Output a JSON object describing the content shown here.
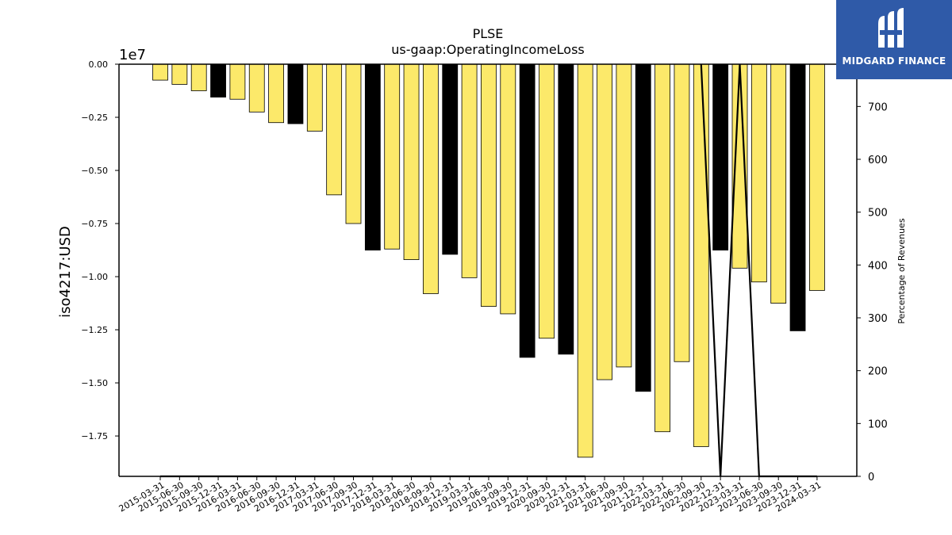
{
  "chart_data": {
    "type": "bar",
    "title": "PLSE",
    "subtitle": "us-gaap:OperatingIncomeLoss",
    "ylabel": "iso4217:USD",
    "y2label": "Percentage of Revenues",
    "y_multiplier": "1e7",
    "ylim": [
      -19400000,
      0
    ],
    "y2lim": [
      0,
      780
    ],
    "y_ticks": [
      0,
      -2500000,
      -5000000,
      -7500000,
      -10000000,
      -12500000,
      -15000000,
      -17500000
    ],
    "y_tick_labels": [
      "0.00",
      "−0.25",
      "−0.50",
      "−0.75",
      "−1.00",
      "−1.25",
      "−1.50",
      "−1.75"
    ],
    "y2_ticks": [
      0,
      100,
      200,
      300,
      400,
      500,
      600,
      700
    ],
    "categories": [
      "2015-03-31",
      "2015-06-30",
      "2015-09-30",
      "2015-12-31",
      "2016-03-31",
      "2016-06-30",
      "2016-09-30",
      "2016-12-31",
      "2017-03-31",
      "2017-06-30",
      "2017-09-30",
      "2017-12-31",
      "2018-03-31",
      "2018-06-30",
      "2018-09-30",
      "2018-12-31",
      "2019-03-31",
      "2019-06-30",
      "2019-09-30",
      "2019-12-31",
      "2020-09-30",
      "2020-12-31",
      "2021-03-31",
      "2021-06-30",
      "2021-09-30",
      "2021-12-31",
      "2022-03-31",
      "2022-06-30",
      "2022-09-30",
      "2022-12-31",
      "2023-03-31",
      "2023-06-30",
      "2023-09-30",
      "2023-12-31",
      "2024-03-31"
    ],
    "values": [
      -750000,
      -950000,
      -1250000,
      -1550000,
      -1650000,
      -2250000,
      -2750000,
      -2800000,
      -3150000,
      -6150000,
      -7500000,
      -8750000,
      -8700000,
      -9200000,
      -10800000,
      -8950000,
      -10050000,
      -11400000,
      -11750000,
      -13800000,
      -12900000,
      -13650000,
      -18500000,
      -14850000,
      -14250000,
      -15400000,
      -17300000,
      -14000000,
      -18000000,
      -8750000,
      -9600000,
      -10250000,
      -11250000,
      -12550000,
      -10650000
    ],
    "bar_colors": [
      "#fce96a",
      "#fce96a",
      "#fce96a",
      "#000000",
      "#fce96a",
      "#fce96a",
      "#fce96a",
      "#000000",
      "#fce96a",
      "#fce96a",
      "#fce96a",
      "#000000",
      "#fce96a",
      "#fce96a",
      "#fce96a",
      "#000000",
      "#fce96a",
      "#fce96a",
      "#fce96a",
      "#000000",
      "#fce96a",
      "#000000",
      "#fce96a",
      "#fce96a",
      "#fce96a",
      "#000000",
      "#fce96a",
      "#fce96a",
      "#fce96a",
      "#000000",
      "#fce96a",
      "#fce96a",
      "#fce96a",
      "#000000",
      "#fce96a"
    ],
    "percentage_of_revenues": [
      0,
      0,
      0,
      0,
      0,
      0,
      0,
      0,
      0,
      0,
      0,
      0,
      0,
      0,
      0,
      0,
      0,
      0,
      0,
      0,
      0,
      0,
      0,
      null,
      null,
      null,
      null,
      null,
      780,
      0,
      780,
      0,
      0,
      0,
      0
    ],
    "colors": {
      "positive_fill": "#fce96a",
      "negative_fill": "#000000",
      "line": "#000000"
    }
  },
  "branding": {
    "name": "MIDGARD FINANCE",
    "background": "#2f5aa8"
  }
}
